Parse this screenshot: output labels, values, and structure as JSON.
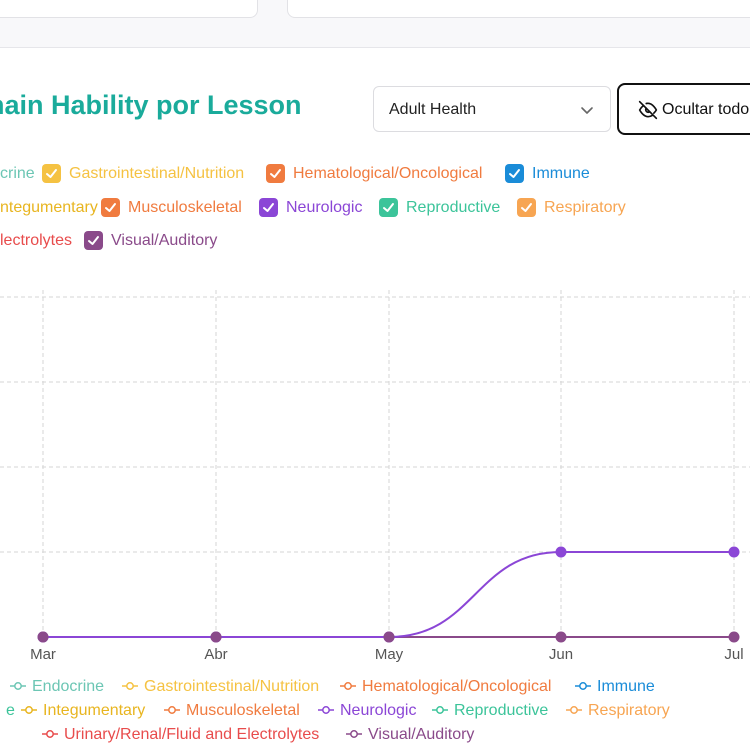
{
  "header": {
    "title": "nain Hability por Lesson",
    "select_value": "Adult Health",
    "hide_all_label": "Ocultar todo"
  },
  "filters": [
    {
      "label": "crine",
      "color": "#6cc6b4"
    },
    {
      "label": "Gastrointestinal/Nutrition",
      "color": "#f5c242"
    },
    {
      "label": "Hematological/Oncological",
      "color": "#f07b3f"
    },
    {
      "label": "Immune",
      "color": "#1a8cd8"
    },
    {
      "label": "ntegumentary",
      "color": "#e8b520"
    },
    {
      "label": "Musculoskeletal",
      "color": "#f07b3f"
    },
    {
      "label": "Neurologic",
      "color": "#8b46d6"
    },
    {
      "label": "Reproductive",
      "color": "#3cc49a"
    },
    {
      "label": "Respiratory",
      "color": "#f7a552"
    },
    {
      "label": "lectrolytes",
      "color": "#e84c4c"
    },
    {
      "label": "Visual/Auditory",
      "color": "#8a4a8a"
    }
  ],
  "chart_data": {
    "type": "line",
    "categories": [
      "Mar",
      "Abr",
      "May",
      "Jun",
      "Jul"
    ],
    "series": [
      {
        "name": "Visual/Auditory",
        "color": "#8a4a8a",
        "values": [
          0,
          0,
          0,
          0,
          0
        ]
      },
      {
        "name": "Neurologic",
        "color": "#8b46d6",
        "values": [
          0,
          0,
          0,
          1,
          1
        ]
      }
    ],
    "ylim": [
      0,
      4
    ],
    "grid": true,
    "legend": [
      {
        "label": "Endocrine",
        "color": "#6cc6b4"
      },
      {
        "label": "Gastrointestinal/Nutrition",
        "color": "#f5c242"
      },
      {
        "label": "Hematological/Oncological",
        "color": "#f07b3f"
      },
      {
        "label": "Immune",
        "color": "#1a8cd8"
      },
      {
        "label": "e",
        "color": "#3cc49a"
      },
      {
        "label": "Integumentary",
        "color": "#e8b520"
      },
      {
        "label": "Musculoskeletal",
        "color": "#f07b3f"
      },
      {
        "label": "Neurologic",
        "color": "#8b46d6"
      },
      {
        "label": "Reproductive",
        "color": "#3cc49a"
      },
      {
        "label": "Respiratory",
        "color": "#f7a552"
      },
      {
        "label": "Urinary/Renal/Fluid and Electrolytes",
        "color": "#e84c4c"
      },
      {
        "label": "Visual/Auditory",
        "color": "#8a4a8a"
      }
    ]
  }
}
